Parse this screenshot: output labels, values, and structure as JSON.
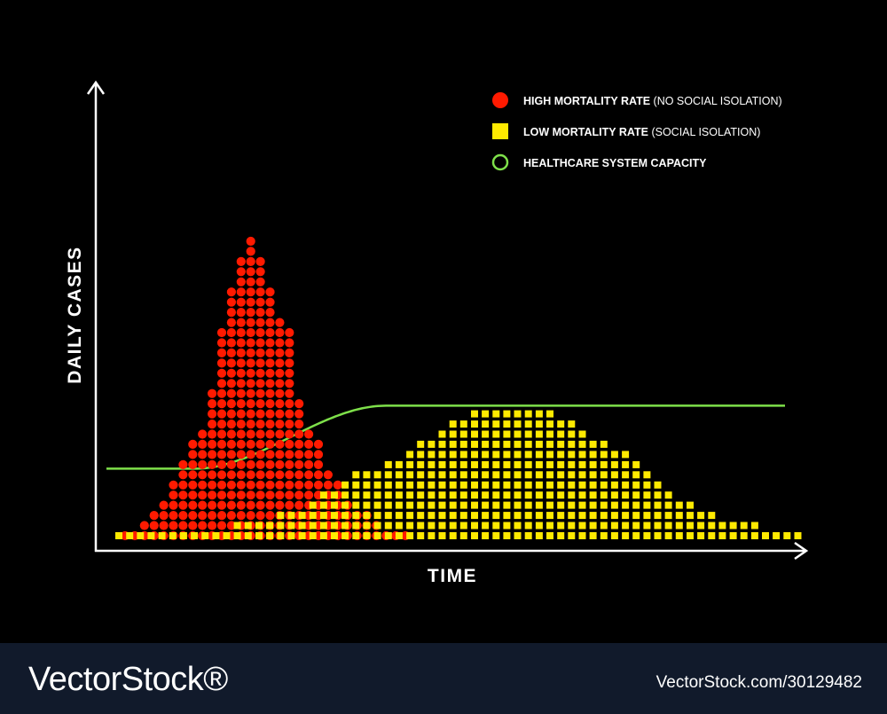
{
  "chart_data": {
    "type": "scatter",
    "xlabel": "TIME",
    "ylabel": "DAILY CASES",
    "legend_position": "top-right",
    "series": [
      {
        "name": "HIGH MORTALITY RATE",
        "name_suffix": "(NO SOCIAL ISOLATION)",
        "marker": "circle",
        "color": "#ff1a00",
        "column_heights": [
          1,
          1,
          2,
          3,
          4,
          6,
          8,
          10,
          11,
          15,
          21,
          25,
          28,
          30,
          28,
          25,
          22,
          21,
          14,
          11,
          10,
          7,
          6,
          4,
          3,
          3,
          2,
          1,
          1,
          1
        ]
      },
      {
        "name": "LOW MORTALITY RATE",
        "name_suffix": "(SOCIAL ISOLATION)",
        "marker": "square",
        "color": "#ffea00",
        "column_heights": [
          1,
          1,
          1,
          1,
          1,
          1,
          1,
          1,
          1,
          1,
          1,
          2,
          2,
          2,
          2,
          3,
          3,
          3,
          4,
          5,
          5,
          6,
          7,
          7,
          7,
          8,
          8,
          9,
          10,
          10,
          11,
          12,
          12,
          13,
          13,
          13,
          13,
          13,
          13,
          13,
          13,
          12,
          12,
          11,
          10,
          10,
          9,
          9,
          8,
          7,
          6,
          5,
          4,
          4,
          3,
          3,
          2,
          2,
          2,
          2,
          1,
          1,
          1,
          1
        ]
      },
      {
        "name": "HEALTHCARE SYSTEM CAPACITY",
        "marker": "ring",
        "color": "#7ee04a",
        "line": {
          "base_level": 6.6,
          "cap_level": 12.8,
          "rise_start": 0.13,
          "rise_end": 0.41
        }
      }
    ]
  },
  "footer": {
    "brand": "VectorStock®",
    "image_id": "VectorStock.com/30129482",
    "background": "#111a2b"
  }
}
